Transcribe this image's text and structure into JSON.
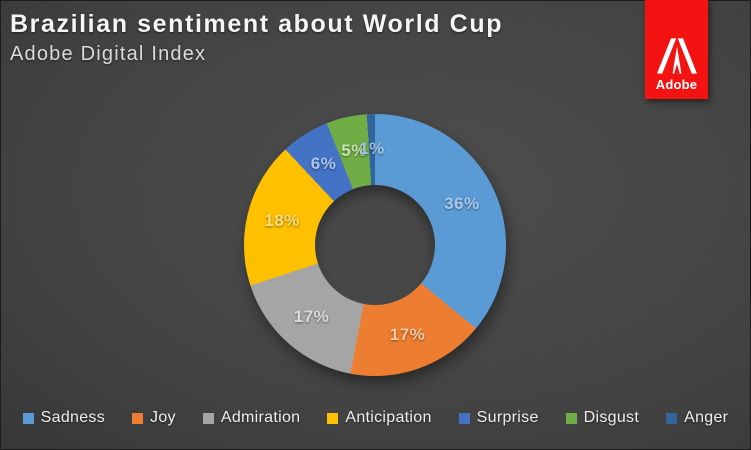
{
  "header": {
    "title": "Brazilian sentiment about World Cup",
    "subtitle": "Adobe Digital Index"
  },
  "logo": {
    "brand": "Adobe",
    "ribbon_color": "#f31313",
    "mark": "adobe-a-icon",
    "mark_color": "#ffffff"
  },
  "chart_data": {
    "type": "pie",
    "subtype": "donut",
    "title": "Brazilian sentiment about World Cup",
    "subtitle": "Adobe Digital Index",
    "legend_position": "bottom",
    "start_angle_deg": 0,
    "direction": "clockwise",
    "categories": [
      "Sadness",
      "Joy",
      "Admiration",
      "Anticipation",
      "Surprise",
      "Disgust",
      "Anger"
    ],
    "values": [
      36,
      17,
      17,
      18,
      6,
      5,
      1
    ],
    "data_labels": [
      "36%",
      "17%",
      "17%",
      "18%",
      "6%",
      "5%",
      "1%"
    ],
    "colors": [
      "#5b9bd5",
      "#ed7d31",
      "#a5a5a5",
      "#ffc000",
      "#4472c4",
      "#70ad47",
      "#31659c"
    ],
    "label_colors": [
      "#a9cbee",
      "#f6c8a4",
      "#dbdbdb",
      "#ffde7c",
      "#a9c6f0",
      "#c7e3ae",
      "#9dc3e6"
    ]
  }
}
